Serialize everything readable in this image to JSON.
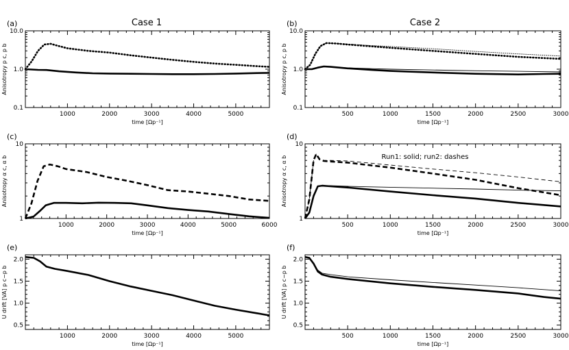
{
  "figure": {
    "case_titles": [
      "Case 1",
      "Case 2"
    ],
    "note_d": "Run1: solid; run2: dashes"
  },
  "chart_data": [
    {
      "type": "line",
      "panel": "(a)",
      "title": "Case 1",
      "xlabel": "time [Ωp⁻¹]",
      "ylabel": "Anisotropy p c, p b",
      "xlim": [
        0,
        5800
      ],
      "ylim": [
        0.1,
        10
      ],
      "ylog": true,
      "xticks": [
        1000,
        2000,
        3000,
        4000,
        5000
      ],
      "yticks": [
        0.1,
        1.0,
        10.0
      ],
      "ytick_labels": [
        "0.1",
        "1.0",
        "10.0"
      ],
      "series": [
        {
          "style": "solid-thick",
          "x": [
            0,
            300,
            500,
            800,
            1200,
            1600,
            2000,
            2500,
            3000,
            3500,
            4000,
            4500,
            5000,
            5500,
            5800
          ],
          "y": [
            1.0,
            0.96,
            0.95,
            0.88,
            0.82,
            0.78,
            0.77,
            0.76,
            0.75,
            0.74,
            0.74,
            0.75,
            0.77,
            0.79,
            0.8
          ]
        },
        {
          "style": "dotted-thick",
          "x": [
            0,
            150,
            300,
            450,
            600,
            800,
            1000,
            1500,
            2000,
            2500,
            3000,
            3500,
            4000,
            4500,
            5000,
            5500,
            5800
          ],
          "y": [
            1.0,
            1.6,
            3.0,
            4.4,
            4.6,
            4.0,
            3.5,
            3.0,
            2.7,
            2.3,
            2.0,
            1.75,
            1.55,
            1.4,
            1.3,
            1.2,
            1.15
          ]
        }
      ]
    },
    {
      "type": "line",
      "panel": "(b)",
      "title": "Case 2",
      "xlabel": "time [Ωp⁻¹]",
      "ylabel": "Anisotropy p c, p b",
      "xlim": [
        0,
        3000
      ],
      "ylim": [
        0.1,
        10
      ],
      "ylog": true,
      "xticks": [
        500,
        1000,
        1500,
        2000,
        2500,
        3000
      ],
      "yticks": [
        0.1,
        1.0,
        10.0
      ],
      "ytick_labels": [
        "0.1",
        "1.0",
        "10.0"
      ],
      "series": [
        {
          "style": "solid-thick",
          "x": [
            0,
            80,
            150,
            220,
            300,
            500,
            800,
            1000,
            1500,
            2000,
            2500,
            2800,
            3000
          ],
          "y": [
            1.0,
            1.0,
            1.1,
            1.18,
            1.15,
            1.05,
            0.95,
            0.9,
            0.82,
            0.76,
            0.73,
            0.75,
            0.76
          ]
        },
        {
          "style": "solid-thin",
          "x": [
            0,
            80,
            150,
            220,
            300,
            500,
            800,
            1000,
            1500,
            2000,
            2500,
            3000
          ],
          "y": [
            1.0,
            1.0,
            1.1,
            1.18,
            1.15,
            1.08,
            1.03,
            1.0,
            0.95,
            0.91,
            0.88,
            0.85
          ]
        },
        {
          "style": "dotted-thick",
          "x": [
            0,
            60,
            120,
            180,
            250,
            350,
            500,
            800,
            1000,
            1500,
            2000,
            2500,
            3000
          ],
          "y": [
            1.0,
            1.3,
            2.5,
            4.0,
            4.8,
            4.7,
            4.4,
            3.9,
            3.6,
            3.0,
            2.5,
            2.1,
            1.85
          ]
        },
        {
          "style": "dotted-thin",
          "x": [
            0,
            60,
            120,
            180,
            250,
            350,
            500,
            800,
            1000,
            1500,
            2000,
            2500,
            3000
          ],
          "y": [
            1.0,
            1.3,
            2.5,
            4.0,
            4.8,
            4.7,
            4.5,
            4.1,
            3.9,
            3.4,
            2.9,
            2.5,
            2.2
          ]
        }
      ]
    },
    {
      "type": "line",
      "panel": "(c)",
      "xlabel": "time [Ωp⁻¹]",
      "ylabel": "Anisotropy α c, α b",
      "xlim": [
        0,
        6000
      ],
      "ylim": [
        1,
        10
      ],
      "ylog": true,
      "xticks": [
        1000,
        2000,
        3000,
        4000,
        5000,
        6000
      ],
      "yticks": [
        1,
        10
      ],
      "ytick_labels": [
        "1",
        "10"
      ],
      "series": [
        {
          "style": "solid-thick",
          "x": [
            0,
            200,
            350,
            500,
            700,
            1000,
            1400,
            1800,
            2200,
            2600,
            3000,
            3500,
            4000,
            4500,
            5000,
            5500,
            6000
          ],
          "y": [
            1.0,
            1.06,
            1.25,
            1.5,
            1.62,
            1.62,
            1.6,
            1.63,
            1.62,
            1.6,
            1.5,
            1.38,
            1.3,
            1.24,
            1.15,
            1.07,
            1.02
          ]
        },
        {
          "style": "dashed-thick",
          "x": [
            0,
            150,
            300,
            450,
            600,
            800,
            1000,
            1500,
            2000,
            2500,
            3000,
            3500,
            4000,
            4500,
            5000,
            5500,
            6000
          ],
          "y": [
            1.0,
            1.6,
            3.2,
            5.0,
            5.3,
            5.0,
            4.6,
            4.2,
            3.6,
            3.2,
            2.8,
            2.4,
            2.3,
            2.15,
            2.0,
            1.8,
            1.72
          ]
        }
      ]
    },
    {
      "type": "line",
      "panel": "(d)",
      "title": "Run1: solid; run2: dashes",
      "xlabel": "time [Ωp⁻¹]",
      "ylabel": "Anisotropy α c, α b",
      "xlim": [
        0,
        3000
      ],
      "ylim": [
        1,
        10
      ],
      "ylog": true,
      "xticks": [
        500,
        1000,
        1500,
        2000,
        2500,
        3000
      ],
      "yticks": [
        1,
        10
      ],
      "ytick_labels": [
        "1",
        "10"
      ],
      "series": [
        {
          "style": "solid-thick",
          "x": [
            0,
            50,
            100,
            150,
            200,
            300,
            500,
            1000,
            1500,
            2000,
            2500,
            3000
          ],
          "y": [
            1.0,
            1.2,
            2.0,
            2.7,
            2.75,
            2.7,
            2.6,
            2.3,
            2.05,
            1.85,
            1.62,
            1.45
          ]
        },
        {
          "style": "solid-thin",
          "x": [
            0,
            50,
            100,
            150,
            200,
            300,
            500,
            1000,
            1500,
            2000,
            2500,
            3000
          ],
          "y": [
            1.0,
            1.2,
            2.0,
            2.7,
            2.75,
            2.75,
            2.7,
            2.62,
            2.55,
            2.48,
            2.4,
            2.35
          ]
        },
        {
          "style": "dashed-thick",
          "x": [
            0,
            50,
            100,
            130,
            170,
            220,
            300,
            500,
            1000,
            1500,
            2000,
            2500,
            3000
          ],
          "y": [
            1.0,
            1.8,
            6.0,
            7.3,
            6.2,
            5.9,
            5.8,
            5.6,
            4.8,
            4.0,
            3.3,
            2.55,
            2.05
          ]
        },
        {
          "style": "dashed-thin",
          "x": [
            0,
            50,
            100,
            130,
            170,
            220,
            300,
            500,
            1000,
            1500,
            2000,
            2500,
            3000
          ],
          "y": [
            1.0,
            1.8,
            6.0,
            7.3,
            6.2,
            6.0,
            6.0,
            5.9,
            5.2,
            4.6,
            4.1,
            3.6,
            3.1
          ]
        }
      ]
    },
    {
      "type": "line",
      "panel": "(e)",
      "xlabel": "time [Ωp⁻¹]",
      "ylabel": "U drift [VA] p c−p b",
      "xlim": [
        0,
        5800
      ],
      "ylim": [
        0.4,
        2.1
      ],
      "xticks": [
        1000,
        2000,
        3000,
        4000,
        5000
      ],
      "yticks": [
        0.5,
        1.0,
        1.5,
        2.0
      ],
      "ytick_labels": [
        "0.5",
        "1.0",
        "1.5",
        "2.0"
      ],
      "series": [
        {
          "style": "solid-thick",
          "x": [
            0,
            200,
            350,
            500,
            700,
            1000,
            1500,
            2000,
            2500,
            3000,
            3500,
            4000,
            4500,
            5000,
            5500,
            5800
          ],
          "y": [
            2.05,
            2.03,
            1.95,
            1.83,
            1.78,
            1.73,
            1.64,
            1.5,
            1.38,
            1.28,
            1.18,
            1.06,
            0.94,
            0.85,
            0.77,
            0.72
          ]
        }
      ]
    },
    {
      "type": "line",
      "panel": "(f)",
      "xlabel": "time [Ωp⁻¹]",
      "ylabel": "U drift [VA] p c−p b",
      "xlim": [
        0,
        3000
      ],
      "ylim": [
        0.4,
        2.1
      ],
      "xticks": [
        500,
        1000,
        1500,
        2000,
        2500,
        3000
      ],
      "yticks": [
        0.5,
        1.0,
        1.5,
        2.0
      ],
      "ytick_labels": [
        "0.5",
        "1.0",
        "1.5",
        "2.0"
      ],
      "series": [
        {
          "style": "solid-thick",
          "x": [
            0,
            50,
            100,
            150,
            200,
            300,
            500,
            1000,
            1500,
            2000,
            2500,
            2800,
            3000
          ],
          "y": [
            2.05,
            2.03,
            1.9,
            1.72,
            1.65,
            1.6,
            1.55,
            1.45,
            1.37,
            1.3,
            1.22,
            1.14,
            1.1
          ]
        },
        {
          "style": "solid-thin",
          "x": [
            0,
            50,
            100,
            150,
            200,
            300,
            500,
            1000,
            1500,
            2000,
            2500,
            3000
          ],
          "y": [
            2.05,
            2.03,
            1.9,
            1.75,
            1.68,
            1.65,
            1.6,
            1.53,
            1.47,
            1.41,
            1.35,
            1.28
          ]
        }
      ]
    }
  ]
}
